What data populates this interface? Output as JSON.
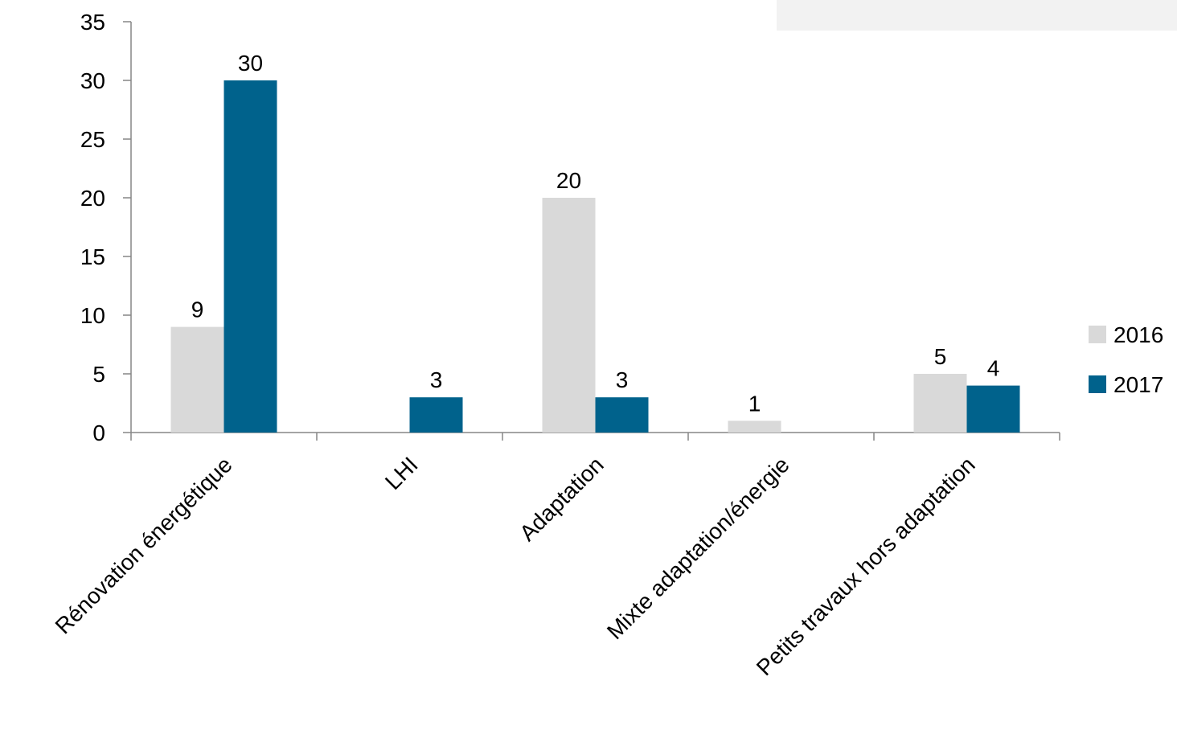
{
  "chart_data": {
    "type": "bar",
    "categories": [
      "Rénovation énergétique",
      "LHI",
      "Adaptation",
      "Mixte adaptation/énergie",
      "Petits travaux hors adaptation"
    ],
    "series": [
      {
        "name": "2016",
        "color": "#d9d9d9",
        "values": [
          9,
          null,
          20,
          1,
          5
        ]
      },
      {
        "name": "2017",
        "color": "#00628c",
        "values": [
          30,
          3,
          3,
          null,
          4
        ]
      }
    ],
    "title": "",
    "xlabel": "",
    "ylabel": "",
    "ylim": [
      0,
      35
    ],
    "yticks": [
      0,
      5,
      10,
      15,
      20,
      25,
      30,
      35
    ],
    "grid": false,
    "legend": "right",
    "data_labels": true
  }
}
